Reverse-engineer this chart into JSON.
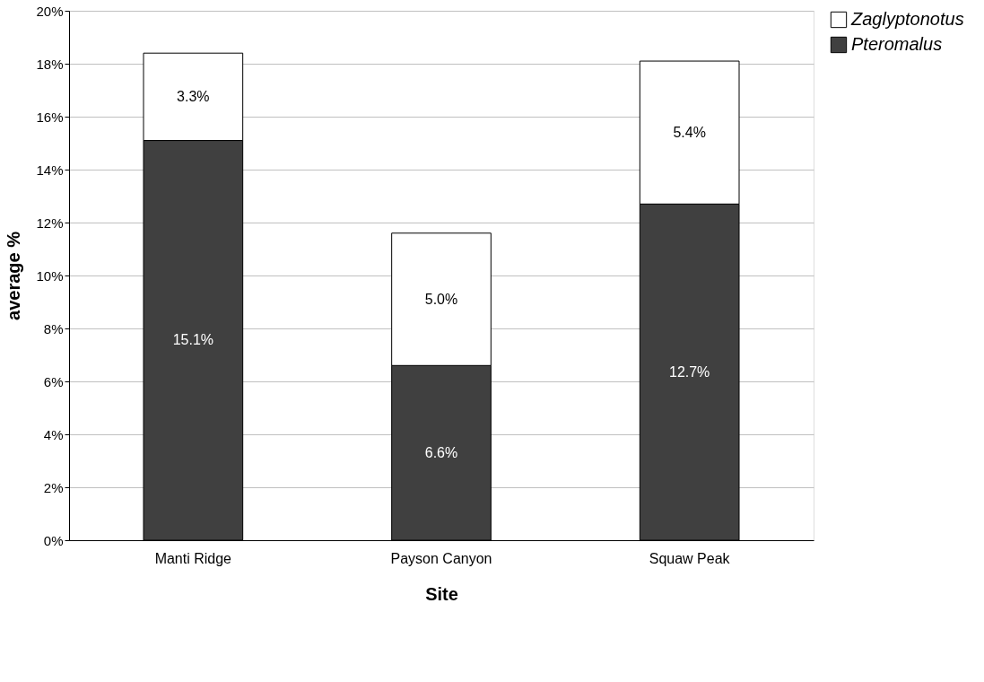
{
  "chart_data": {
    "type": "bar",
    "stacked": true,
    "xlabel": "Site",
    "ylabel": "average %",
    "categories": [
      "Manti Ridge",
      "Payson Canyon",
      "Squaw Peak"
    ],
    "series": [
      {
        "name": "Pteromalus",
        "color": "#404040",
        "values": [
          15.1,
          6.6,
          12.7
        ],
        "value_labels": [
          "15.1%",
          "6.6%",
          "12.7%"
        ]
      },
      {
        "name": "Zaglyptonotus",
        "color": "#ffffff",
        "values": [
          3.3,
          5.0,
          5.4
        ],
        "value_labels": [
          "3.3%",
          "5.0%",
          "5.4%"
        ]
      }
    ],
    "ylim": [
      0,
      20
    ],
    "yticks": [
      {
        "value": 0,
        "label": "0%"
      },
      {
        "value": 2,
        "label": "2%"
      },
      {
        "value": 4,
        "label": "4%"
      },
      {
        "value": 6,
        "label": "6%"
      },
      {
        "value": 8,
        "label": "8%"
      },
      {
        "value": 10,
        "label": "10%"
      },
      {
        "value": 12,
        "label": "12%"
      },
      {
        "value": 14,
        "label": "14%"
      },
      {
        "value": 16,
        "label": "16%"
      },
      {
        "value": 18,
        "label": "18%"
      },
      {
        "value": 20,
        "label": "20%"
      }
    ],
    "grid": "y",
    "legend": "right"
  }
}
